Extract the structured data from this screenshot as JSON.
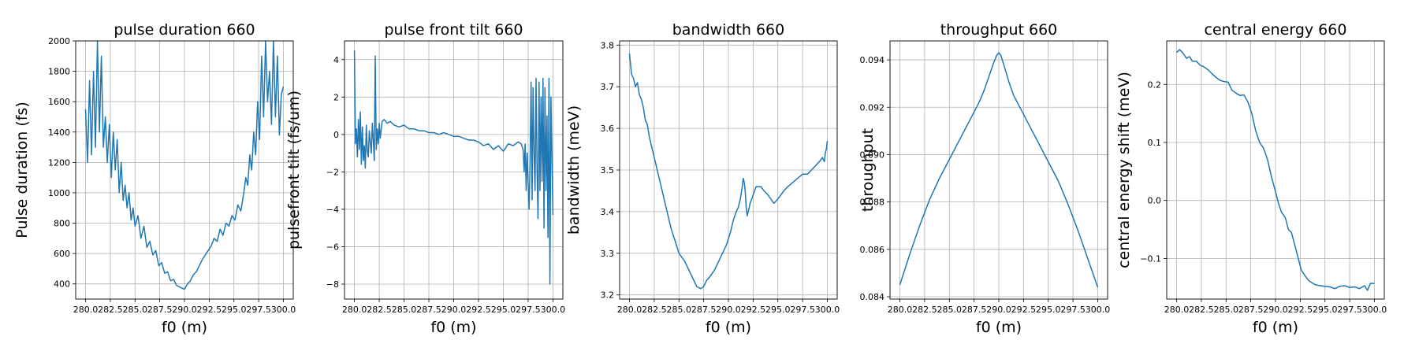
{
  "chart_data": [
    {
      "type": "line",
      "title": "pulse duration 660",
      "xlabel": "f0 (m)",
      "ylabel": "Pulse duration (fs)",
      "xlim": [
        279.0,
        301.0
      ],
      "ylim": [
        300,
        2000
      ],
      "xticks": [
        280.0,
        282.5,
        285.0,
        287.5,
        290.0,
        292.5,
        295.0,
        297.5,
        300.0
      ],
      "yticks": [
        400,
        600,
        800,
        1000,
        1200,
        1400,
        1600,
        1800,
        2000
      ],
      "xtick_labels": [
        "280.0",
        "282.5",
        "285.0",
        "287.5",
        "290.0",
        "292.5",
        "295.0",
        "297.5",
        "300.0"
      ],
      "ytick_labels": [
        "400",
        "600",
        "800",
        "1000",
        "1200",
        "1400",
        "1600",
        "1800",
        "2000"
      ],
      "grid": true,
      "series": [
        {
          "color": "#1f77b4",
          "x": [
            280.0,
            280.2,
            280.4,
            280.6,
            280.8,
            281.0,
            281.2,
            281.4,
            281.6,
            281.8,
            282.0,
            282.2,
            282.4,
            282.6,
            282.8,
            283.0,
            283.2,
            283.4,
            283.6,
            283.8,
            284.0,
            284.2,
            284.4,
            284.6,
            284.8,
            285.0,
            285.3,
            285.6,
            285.9,
            286.2,
            286.5,
            286.8,
            287.1,
            287.4,
            287.7,
            288.0,
            288.3,
            288.6,
            288.9,
            289.2,
            289.5,
            289.8,
            290.0,
            290.3,
            290.6,
            290.9,
            291.2,
            291.5,
            291.8,
            292.1,
            292.4,
            292.7,
            293.0,
            293.3,
            293.6,
            293.9,
            294.2,
            294.5,
            294.8,
            295.1,
            295.4,
            295.7,
            296.0,
            296.2,
            296.4,
            296.6,
            296.8,
            297.0,
            297.2,
            297.4,
            297.6,
            297.8,
            298.0,
            298.2,
            298.4,
            298.6,
            298.8,
            299.0,
            299.2,
            299.4,
            299.6,
            299.8,
            300.0
          ],
          "y": [
            1550,
            1200,
            1740,
            1250,
            1800,
            1300,
            2000,
            1400,
            1900,
            1300,
            1500,
            1200,
            1450,
            1100,
            1400,
            1150,
            1350,
            1000,
            1200,
            950,
            1050,
            900,
            1000,
            820,
            900,
            780,
            850,
            700,
            780,
            640,
            680,
            590,
            620,
            520,
            540,
            470,
            480,
            420,
            430,
            390,
            380,
            370,
            365,
            400,
            420,
            460,
            480,
            520,
            560,
            590,
            620,
            650,
            700,
            680,
            760,
            720,
            800,
            780,
            850,
            820,
            920,
            880,
            1000,
            1100,
            1050,
            1250,
            1150,
            1400,
            1250,
            1600,
            1350,
            1900,
            1500,
            2000,
            1600,
            1800,
            1450,
            2000,
            1500,
            1900,
            1380,
            1650,
            1700
          ]
        }
      ]
    },
    {
      "type": "line",
      "title": "pulse front tilt 660",
      "xlabel": "f0 (m)",
      "ylabel": "pulsefront tilt (fs/um)",
      "xlim": [
        279.0,
        301.0
      ],
      "ylim": [
        -8.8,
        5.0
      ],
      "xticks": [
        280.0,
        282.5,
        285.0,
        287.5,
        290.0,
        292.5,
        295.0,
        297.5,
        300.0
      ],
      "yticks": [
        -8,
        -6,
        -4,
        -2,
        0,
        2,
        4
      ],
      "xtick_labels": [
        "280.0",
        "282.5",
        "285.0",
        "287.5",
        "290.0",
        "292.5",
        "295.0",
        "297.5",
        "300.0"
      ],
      "ytick_labels": [
        "−8",
        "−6",
        "−4",
        "−2",
        "0",
        "2",
        "4"
      ],
      "grid": true,
      "series": [
        {
          "color": "#1f77b4",
          "x": [
            280.0,
            280.1,
            280.2,
            280.3,
            280.4,
            280.5,
            280.6,
            280.7,
            280.8,
            280.9,
            281.0,
            281.1,
            281.2,
            281.3,
            281.4,
            281.5,
            281.6,
            281.7,
            281.8,
            281.9,
            282.0,
            282.1,
            282.2,
            282.3,
            282.4,
            282.5,
            282.6,
            282.8,
            283.0,
            283.3,
            283.6,
            284.0,
            284.5,
            285.0,
            285.5,
            286.0,
            286.5,
            287.0,
            287.5,
            288.0,
            288.5,
            289.0,
            289.5,
            290.0,
            290.5,
            291.0,
            291.5,
            292.0,
            292.5,
            293.0,
            293.5,
            294.0,
            294.5,
            295.0,
            295.5,
            296.0,
            296.5,
            296.8,
            297.0,
            297.1,
            297.2,
            297.3,
            297.4,
            297.5,
            297.6,
            297.7,
            297.8,
            297.9,
            298.0,
            298.1,
            298.2,
            298.3,
            298.4,
            298.5,
            298.6,
            298.7,
            298.8,
            298.9,
            299.0,
            299.1,
            299.2,
            299.3,
            299.4,
            299.5,
            299.6,
            299.7,
            299.8,
            299.9,
            300.0
          ],
          "y": [
            4.5,
            -0.5,
            0.3,
            -1.2,
            0.8,
            -0.8,
            1.2,
            -1.6,
            0.4,
            -1.4,
            -0.6,
            -1.8,
            0.5,
            -0.9,
            -1.2,
            0.2,
            -0.4,
            -1.0,
            0.6,
            -0.3,
            -1.4,
            4.2,
            -0.8,
            0.3,
            -0.5,
            0.6,
            -0.2,
            0.7,
            0.8,
            0.6,
            0.7,
            0.5,
            0.4,
            0.5,
            0.3,
            0.3,
            0.2,
            0.2,
            0.1,
            0.1,
            0.0,
            0.1,
            0.0,
            -0.1,
            -0.1,
            -0.2,
            -0.3,
            -0.3,
            -0.4,
            -0.6,
            -0.5,
            -0.8,
            -0.6,
            -0.9,
            -0.5,
            -0.6,
            -0.4,
            -0.5,
            -0.8,
            -2.0,
            -0.5,
            -3.0,
            -1.0,
            -2.5,
            -4.0,
            -1.5,
            2.8,
            -3.5,
            2.5,
            -1.0,
            -3.0,
            3.0,
            -2.0,
            -4.5,
            2.8,
            -3.0,
            2.0,
            -2.5,
            3.0,
            -5.0,
            2.5,
            -3.0,
            1.0,
            -5.5,
            3.0,
            -8.0,
            2.0,
            -1.0,
            -4.3
          ]
        }
      ]
    },
    {
      "type": "line",
      "title": "bandwidth 660",
      "xlabel": "f0 (m)",
      "ylabel": "bandwidth (meV)",
      "xlim": [
        279.0,
        301.0
      ],
      "ylim": [
        3.19,
        3.81
      ],
      "xticks": [
        280.0,
        282.5,
        285.0,
        287.5,
        290.0,
        292.5,
        295.0,
        297.5,
        300.0
      ],
      "yticks": [
        3.2,
        3.3,
        3.4,
        3.5,
        3.6,
        3.7,
        3.8
      ],
      "xtick_labels": [
        "280.0",
        "282.5",
        "285.0",
        "287.5",
        "290.0",
        "292.5",
        "295.0",
        "297.5",
        "300.0"
      ],
      "ytick_labels": [
        "3.2",
        "3.3",
        "3.4",
        "3.5",
        "3.6",
        "3.7",
        "3.8"
      ],
      "grid": true,
      "series": [
        {
          "color": "#1f77b4",
          "x": [
            280.0,
            280.2,
            280.4,
            280.6,
            280.8,
            281.0,
            281.2,
            281.4,
            281.6,
            281.8,
            282.0,
            282.3,
            282.6,
            283.0,
            283.4,
            283.8,
            284.2,
            284.6,
            285.0,
            285.3,
            285.6,
            286.0,
            286.4,
            286.8,
            287.2,
            287.5,
            287.8,
            288.0,
            288.3,
            288.6,
            289.0,
            289.4,
            289.8,
            290.2,
            290.5,
            290.8,
            291.0,
            291.2,
            291.4,
            291.5,
            291.6,
            291.7,
            291.8,
            291.9,
            292.0,
            292.2,
            292.5,
            292.8,
            293.0,
            293.3,
            293.6,
            294.0,
            294.3,
            294.6,
            295.0,
            295.3,
            295.6,
            296.0,
            296.5,
            297.0,
            297.5,
            298.0,
            298.4,
            298.8,
            299.2,
            299.5,
            299.7,
            299.8,
            299.9,
            300.0
          ],
          "y": [
            3.78,
            3.73,
            3.72,
            3.7,
            3.71,
            3.68,
            3.67,
            3.65,
            3.62,
            3.61,
            3.58,
            3.55,
            3.52,
            3.48,
            3.44,
            3.4,
            3.36,
            3.33,
            3.3,
            3.29,
            3.28,
            3.26,
            3.24,
            3.22,
            3.215,
            3.22,
            3.235,
            3.24,
            3.25,
            3.26,
            3.28,
            3.3,
            3.32,
            3.35,
            3.38,
            3.4,
            3.41,
            3.43,
            3.46,
            3.48,
            3.47,
            3.45,
            3.41,
            3.39,
            3.4,
            3.42,
            3.44,
            3.46,
            3.46,
            3.46,
            3.45,
            3.44,
            3.43,
            3.42,
            3.43,
            3.44,
            3.45,
            3.46,
            3.47,
            3.48,
            3.49,
            3.49,
            3.5,
            3.51,
            3.52,
            3.53,
            3.52,
            3.54,
            3.55,
            3.57
          ]
        }
      ]
    },
    {
      "type": "line",
      "title": "throughput 660",
      "xlabel": "f0 (m)",
      "ylabel": "throughput",
      "xlim": [
        279.0,
        301.0
      ],
      "ylim": [
        0.0839,
        0.0948
      ],
      "xticks": [
        280.0,
        282.5,
        285.0,
        287.5,
        290.0,
        292.5,
        295.0,
        297.5,
        300.0
      ],
      "yticks": [
        0.084,
        0.086,
        0.088,
        0.09,
        0.092,
        0.094
      ],
      "xtick_labels": [
        "280.0",
        "282.5",
        "285.0",
        "287.5",
        "290.0",
        "292.5",
        "295.0",
        "297.5",
        "300.0"
      ],
      "ytick_labels": [
        "0.084",
        "0.086",
        "0.088",
        "0.090",
        "0.092",
        "0.094"
      ],
      "grid": true,
      "series": [
        {
          "color": "#1f77b4",
          "x": [
            280.0,
            281.0,
            282.0,
            283.0,
            284.0,
            285.0,
            286.0,
            287.0,
            288.0,
            288.5,
            289.0,
            289.5,
            289.8,
            290.0,
            290.2,
            290.5,
            291.0,
            291.5,
            292.0,
            293.0,
            294.0,
            295.0,
            296.0,
            297.0,
            298.0,
            299.0,
            300.0
          ],
          "y": [
            0.0845,
            0.0858,
            0.087,
            0.0881,
            0.089,
            0.0898,
            0.0906,
            0.0914,
            0.0922,
            0.0927,
            0.0933,
            0.0939,
            0.0942,
            0.0943,
            0.0942,
            0.0938,
            0.0931,
            0.0925,
            0.0921,
            0.0913,
            0.0905,
            0.0897,
            0.0889,
            0.0879,
            0.0868,
            0.0856,
            0.0844
          ]
        }
      ]
    },
    {
      "type": "line",
      "title": "central energy 660",
      "xlabel": "f0 (m)",
      "ylabel": "central energy shift (meV)",
      "xlim": [
        279.0,
        301.0
      ],
      "ylim": [
        -0.17,
        0.275
      ],
      "xticks": [
        280.0,
        282.5,
        285.0,
        287.5,
        290.0,
        292.5,
        295.0,
        297.5,
        300.0
      ],
      "yticks": [
        -0.1,
        0.0,
        0.1,
        0.2
      ],
      "xtick_labels": [
        "280.0",
        "282.5",
        "285.0",
        "287.5",
        "290.0",
        "292.5",
        "295.0",
        "297.5",
        "300.0"
      ],
      "ytick_labels": [
        "−0.1",
        "0.0",
        "0.1",
        "0.2"
      ],
      "grid": true,
      "series": [
        {
          "color": "#1f77b4",
          "x": [
            280.0,
            280.3,
            280.6,
            281.0,
            281.3,
            281.6,
            282.0,
            282.4,
            282.8,
            283.2,
            283.6,
            284.0,
            284.4,
            284.8,
            285.2,
            285.6,
            286.0,
            286.4,
            286.8,
            287.2,
            287.6,
            288.0,
            288.4,
            288.8,
            289.2,
            289.6,
            290.0,
            290.3,
            290.6,
            291.0,
            291.3,
            291.6,
            292.0,
            292.3,
            292.6,
            293.0,
            293.3,
            293.6,
            294.0,
            294.5,
            295.0,
            295.5,
            296.0,
            296.5,
            297.0,
            297.5,
            298.0,
            298.5,
            299.0,
            299.3,
            299.6,
            300.0
          ],
          "y": [
            0.255,
            0.26,
            0.255,
            0.245,
            0.248,
            0.24,
            0.24,
            0.233,
            0.23,
            0.225,
            0.218,
            0.212,
            0.207,
            0.205,
            0.204,
            0.19,
            0.185,
            0.181,
            0.182,
            0.17,
            0.15,
            0.12,
            0.1,
            0.09,
            0.07,
            0.04,
            0.015,
            -0.005,
            -0.02,
            -0.03,
            -0.05,
            -0.055,
            -0.08,
            -0.1,
            -0.12,
            -0.13,
            -0.137,
            -0.141,
            -0.145,
            -0.147,
            -0.148,
            -0.149,
            -0.152,
            -0.148,
            -0.147,
            -0.15,
            -0.149,
            -0.152,
            -0.147,
            -0.155,
            -0.143,
            -0.143
          ]
        }
      ]
    }
  ]
}
